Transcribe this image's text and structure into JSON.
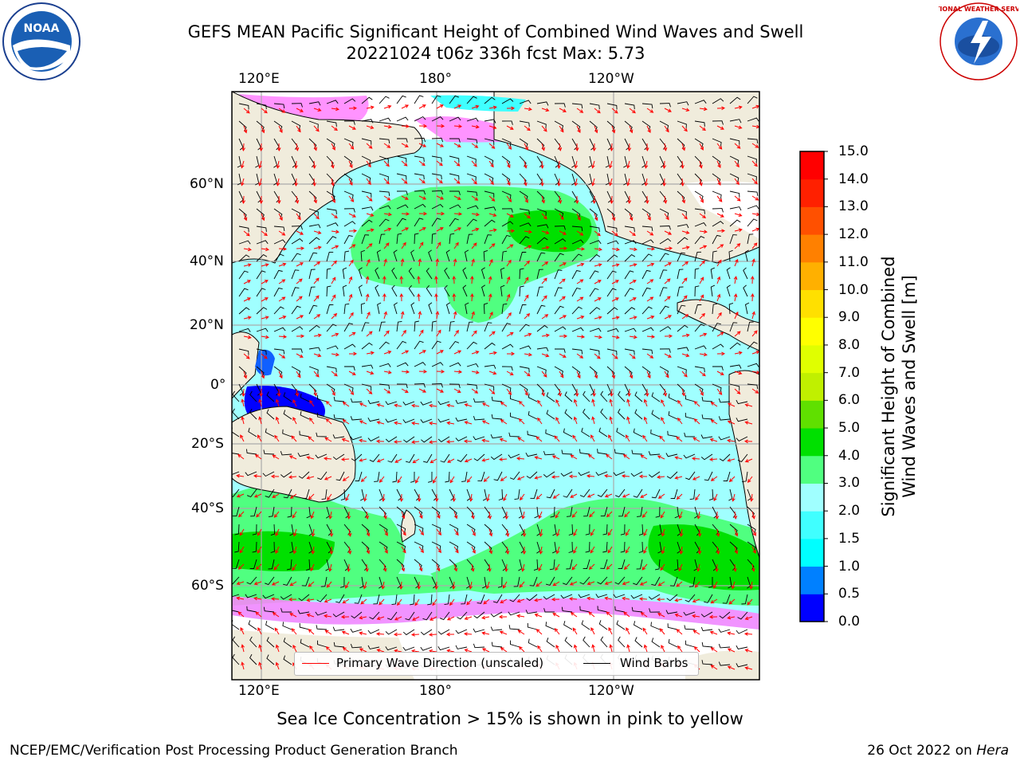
{
  "title": {
    "line1": "GEFS MEAN Pacific Significant Height of Combined Wind Waves and Swell",
    "line2": "20221024 t06z 336h fcst   Max: 5.73"
  },
  "axes": {
    "lon_ticks": [
      "120°E",
      "180°",
      "120°W"
    ],
    "lat_ticks": [
      "60°N",
      "40°N",
      "20°N",
      "0°",
      "20°S",
      "40°S",
      "60°S"
    ]
  },
  "legend": {
    "primary_wave_label": "Primary Wave Direction (unscaled)",
    "wind_barbs_label": "Wind Barbs",
    "primary_wave_color": "#ff0000",
    "wind_barbs_color": "#000000"
  },
  "colorbar": {
    "title_line1": "Significant Height of Combined",
    "title_line2": "Wind Waves and Swell [m]",
    "tick_labels": [
      "0.0",
      "0.5",
      "1.0",
      "1.5",
      "2.0",
      "3.0",
      "4.0",
      "5.0",
      "6.0",
      "7.0",
      "8.0",
      "9.0",
      "10.0",
      "11.0",
      "12.0",
      "13.0",
      "14.0",
      "15.0"
    ],
    "colors": [
      "#0000ff",
      "#0080ff",
      "#00ffff",
      "#40ffff",
      "#a0ffff",
      "#50ff80",
      "#00e000",
      "#60e000",
      "#c0f000",
      "#e0ff00",
      "#ffff00",
      "#ffe000",
      "#ffb000",
      "#ff8000",
      "#ff5000",
      "#ff2000",
      "#ff0000"
    ]
  },
  "note": "Sea Ice Concentration > 15% is shown in pink to yellow",
  "footer": {
    "left": "NCEP/EMC/Verification Post Processing Product Generation Branch",
    "right_prefix": "26 Oct 2022 on ",
    "right_host": "Hera"
  },
  "logos": {
    "noaa_text": "NOAA",
    "nws_text": "NATIONAL WEATHER SERVICE"
  },
  "map_colors": {
    "land": "#f0ecdc",
    "ice_free_ocean": "#ffffff",
    "sea_ice": "#ff80ff"
  }
}
